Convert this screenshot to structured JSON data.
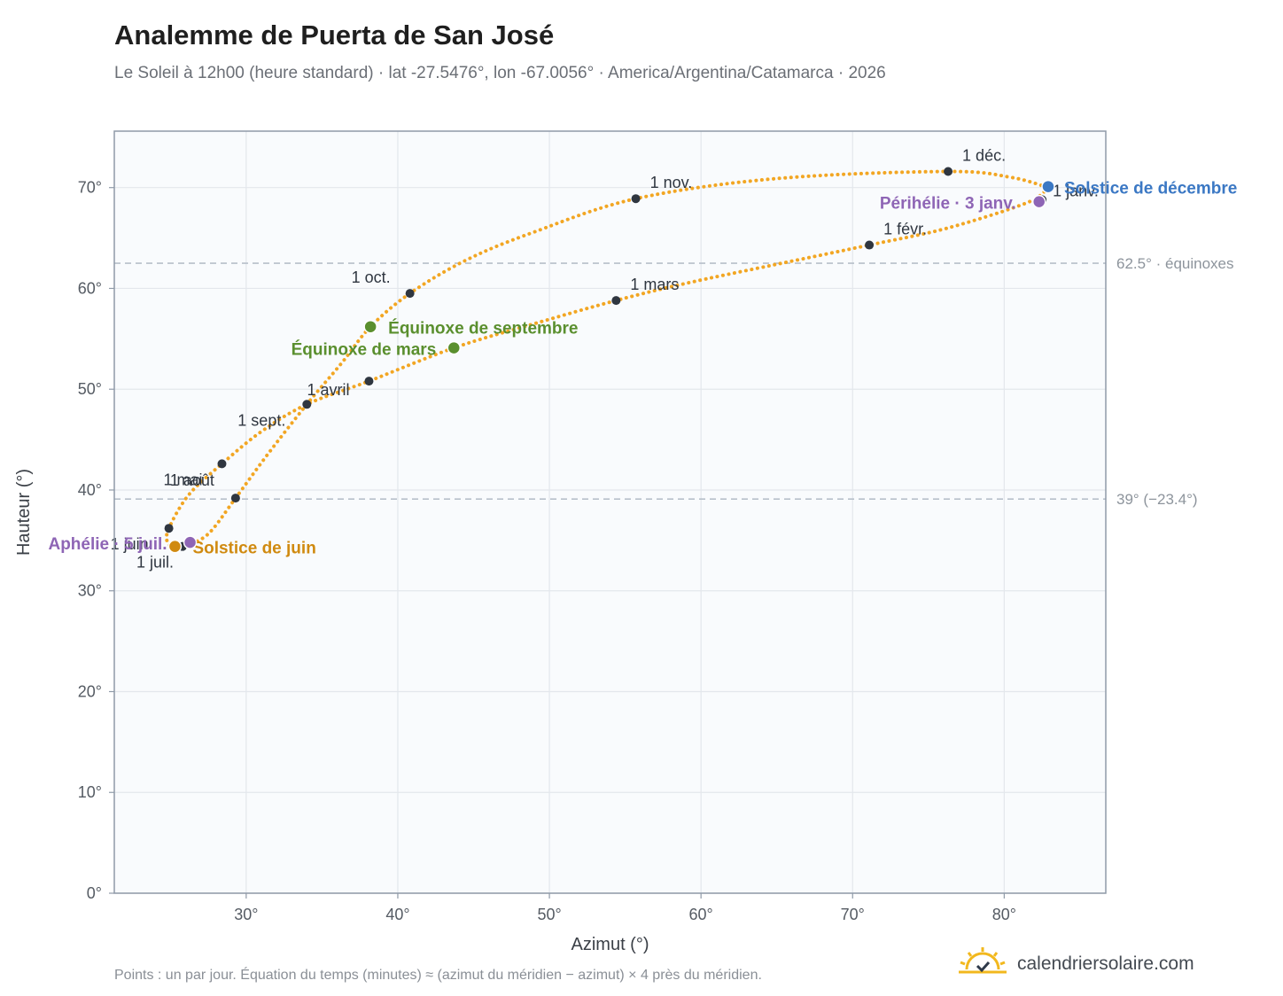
{
  "header": {
    "title": "Analemme de Puerta de San José",
    "subtitle": "Le Soleil à 12h00 (heure standard) · lat -27.5476°, lon -67.0056° · America/Argentina/Catamarca · 2026"
  },
  "footer": {
    "note": "Points : un par jour. Équation du temps (minutes) ≈ (azimut du méridien − azimut) × 4 près du méridien.",
    "brand": "calendriersolaire.com",
    "brand_icon": "sun-logo-icon"
  },
  "colors": {
    "curve": "#f2a623",
    "month_dot": "#2f3640",
    "equinox": "#5a8f2e",
    "june_solstice": "#d08a10",
    "december_solstice": "#3b78c4",
    "apsis": "#8e65b5",
    "grid": "#e3e7ec",
    "frame": "#8f9aa8",
    "plot_bg": "#f9fbfd",
    "refline": "#b7c0ca"
  },
  "chart_data": {
    "type": "scatter",
    "title": "Analemme de Puerta de San José",
    "xlabel": "Azimut (°)",
    "ylabel": "Hauteur (°)",
    "xlim": [
      21.3,
      86.7
    ],
    "ylim": [
      0,
      75.6
    ],
    "xticks": [
      30,
      40,
      50,
      60,
      70,
      80
    ],
    "yticks": [
      0,
      10,
      20,
      30,
      40,
      50,
      60,
      70
    ],
    "tick_suffix": "°",
    "grid": true,
    "reference_lines": [
      {
        "y": 62.5,
        "label": "62.5° · équinoxes"
      },
      {
        "y": 39.1,
        "label": "39° (−23.4°)"
      }
    ],
    "analemma_path": [
      [
        82.9,
        70.0
      ],
      [
        81.5,
        68.5
      ],
      [
        76.3,
        66.0
      ],
      [
        71.1,
        64.3
      ],
      [
        65.0,
        62.4
      ],
      [
        59.0,
        60.5
      ],
      [
        54.4,
        58.8
      ],
      [
        49.0,
        56.5
      ],
      [
        43.7,
        54.1
      ],
      [
        38.1,
        50.8
      ],
      [
        34.0,
        48.5
      ],
      [
        31.0,
        45.8
      ],
      [
        28.4,
        42.6
      ],
      [
        26.2,
        39.5
      ],
      [
        24.9,
        36.2
      ],
      [
        24.8,
        34.8
      ],
      [
        25.2,
        34.4
      ],
      [
        25.6,
        34.3
      ],
      [
        26.3,
        34.6
      ],
      [
        27.6,
        35.8
      ],
      [
        29.3,
        39.2
      ],
      [
        31.5,
        43.7
      ],
      [
        34.0,
        48.5
      ],
      [
        36.3,
        52.6
      ],
      [
        38.2,
        56.2
      ],
      [
        40.8,
        59.5
      ],
      [
        44.5,
        62.8
      ],
      [
        49.0,
        65.6
      ],
      [
        55.7,
        68.9
      ],
      [
        65.0,
        70.9
      ],
      [
        76.3,
        71.6
      ],
      [
        80.5,
        71.0
      ],
      [
        82.9,
        70.0
      ]
    ],
    "month_markers": [
      {
        "label": "1 janv.",
        "x": 82.5,
        "y": 68.8
      },
      {
        "label": "1 févr.",
        "x": 71.1,
        "y": 64.3
      },
      {
        "label": "1 mars",
        "x": 54.4,
        "y": 58.8
      },
      {
        "label": "1 avril",
        "x": 38.1,
        "y": 50.8
      },
      {
        "label": "1 mai",
        "x": 28.4,
        "y": 42.6
      },
      {
        "label": "1 juin",
        "x": 24.9,
        "y": 36.2
      },
      {
        "label": "1 juil.",
        "x": 25.8,
        "y": 34.4
      },
      {
        "label": "1 août",
        "x": 29.3,
        "y": 39.2
      },
      {
        "label": "1 sept.",
        "x": 34.0,
        "y": 48.5
      },
      {
        "label": "1 oct.",
        "x": 40.8,
        "y": 59.5
      },
      {
        "label": "1 nov.",
        "x": 55.7,
        "y": 68.9
      },
      {
        "label": "1 déc.",
        "x": 76.3,
        "y": 71.6
      }
    ],
    "events": [
      {
        "label": "Solstice de décembre",
        "x": 82.9,
        "y": 70.1,
        "kind": "december_solstice"
      },
      {
        "label": "Périhélie · 3 janv.",
        "x": 82.3,
        "y": 68.6,
        "kind": "apsis"
      },
      {
        "label": "Équinoxe de septembre",
        "x": 38.2,
        "y": 56.2,
        "kind": "equinox"
      },
      {
        "label": "Équinoxe de mars",
        "x": 43.7,
        "y": 54.1,
        "kind": "equinox"
      },
      {
        "label": "Solstice de juin",
        "x": 25.3,
        "y": 34.4,
        "kind": "june_solstice"
      },
      {
        "label": "Aphélie · 5 juil.",
        "x": 26.3,
        "y": 34.8,
        "kind": "apsis"
      }
    ]
  }
}
